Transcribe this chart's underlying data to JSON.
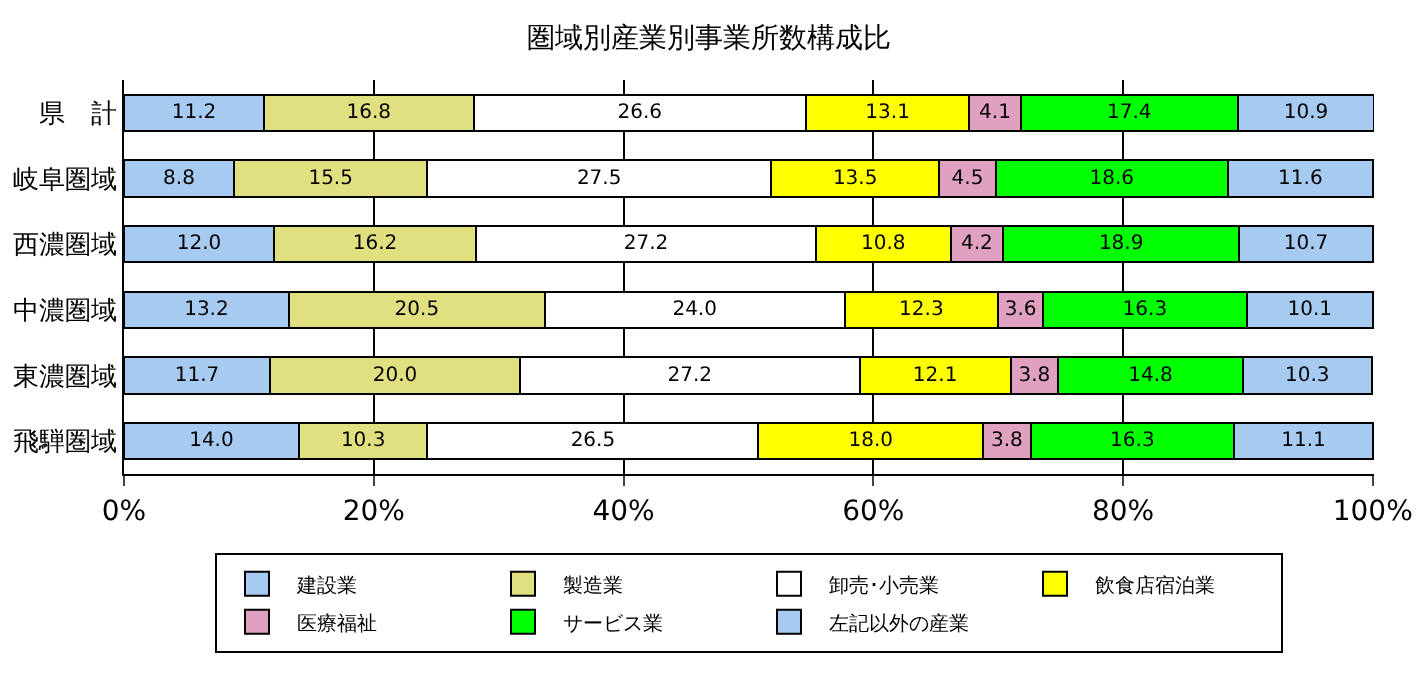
{
  "chart_data": {
    "type": "bar",
    "title": "圏域別産業別事業所数構成比",
    "orientation": "horizontal",
    "stacked": true,
    "categories": [
      "県　計",
      "岐阜圏域",
      "西濃圏域",
      "中濃圏域",
      "東濃圏域",
      "飛騨圏域"
    ],
    "series": [
      {
        "name": "建設業",
        "color": "#a6caf0",
        "values": [
          11.2,
          8.8,
          12.0,
          13.2,
          11.7,
          14.0
        ],
        "value_labels": [
          "11.2",
          "8.8",
          "12.0",
          "13.2",
          "11.7",
          "14.0"
        ]
      },
      {
        "name": "製造業",
        "color": "#e0e080",
        "values": [
          16.8,
          15.5,
          16.2,
          20.5,
          20.0,
          10.3
        ],
        "value_labels": [
          "16.8",
          "15.5",
          "16.2",
          "20.5",
          "20.0",
          "10.3"
        ]
      },
      {
        "name": "卸売･小売業",
        "color": "#ffffff",
        "values": [
          26.6,
          27.5,
          27.2,
          24.0,
          27.2,
          26.5
        ],
        "value_labels": [
          "26.6",
          "27.5",
          "27.2",
          "24.0",
          "27.2",
          "26.5"
        ]
      },
      {
        "name": "飲食店宿泊業",
        "color": "#ffff00",
        "values": [
          13.1,
          13.5,
          10.8,
          12.3,
          12.1,
          18.0
        ],
        "value_labels": [
          "13.1",
          "13.5",
          "10.8",
          "12.3",
          "12.1",
          "18.0"
        ]
      },
      {
        "name": "医療福祉",
        "color": "#e0a0c0",
        "values": [
          4.1,
          4.5,
          4.2,
          3.6,
          3.8,
          3.8
        ],
        "value_labels": [
          "4.1",
          "4.5",
          "4.2",
          "3.6",
          "3.8",
          "3.8"
        ]
      },
      {
        "name": "サービス業",
        "color": "#00ff00",
        "values": [
          17.4,
          18.6,
          18.9,
          16.3,
          14.8,
          16.3
        ],
        "value_labels": [
          "17.4",
          "18.6",
          "18.9",
          "16.3",
          "14.8",
          "16.3"
        ]
      },
      {
        "name": "左記以外の産業",
        "color": "#a6caf0",
        "values": [
          10.9,
          11.6,
          10.7,
          10.1,
          10.3,
          11.1
        ],
        "value_labels": [
          "10.9",
          "11.6",
          "10.7",
          "10.1",
          "10.3",
          "11.1"
        ]
      }
    ],
    "xlim": [
      0,
      100.1
    ],
    "xticks": [
      {
        "value": 0,
        "label": "0%"
      },
      {
        "value": 20,
        "label": "20%"
      },
      {
        "value": 40,
        "label": "40%"
      },
      {
        "value": 60,
        "label": "60%"
      },
      {
        "value": 80,
        "label": "80%"
      },
      {
        "value": 100,
        "label": "100%"
      }
    ],
    "grid": "x",
    "legend": "bottom"
  }
}
